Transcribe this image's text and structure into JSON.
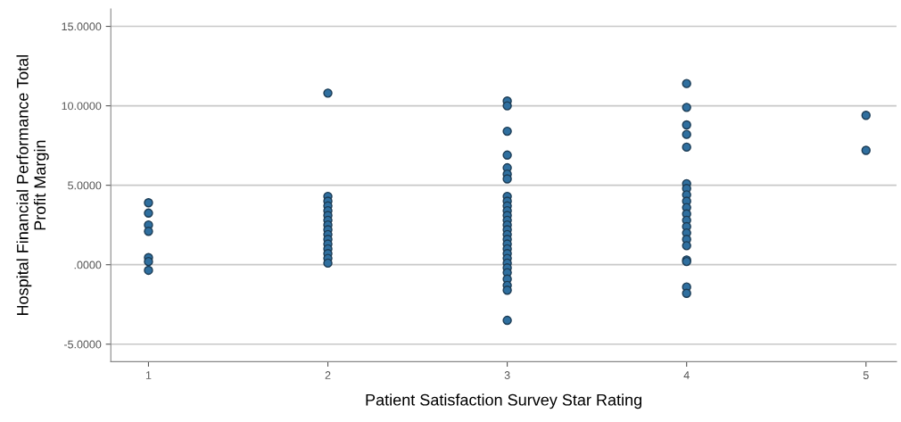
{
  "chart_data": {
    "type": "scatter",
    "xlabel": "Patient Satisfaction Survey Star Rating",
    "ylabel": "Hospital Financial Performance Total\nProfit Margin",
    "series": [
      {
        "color": "#2f6f9f",
        "x": [
          1,
          1,
          1,
          1,
          1,
          1,
          1,
          2,
          2,
          2,
          2,
          2,
          2,
          2,
          2,
          2,
          2,
          2,
          2,
          2,
          2,
          2,
          2,
          3,
          3,
          3,
          3,
          3,
          3,
          3,
          3,
          3,
          3,
          3,
          3,
          3,
          3,
          3,
          3,
          3,
          3,
          3,
          3,
          3,
          3,
          3,
          3,
          3,
          3,
          3,
          3,
          4,
          4,
          4,
          4,
          4,
          4,
          4,
          4,
          4,
          4,
          4,
          4,
          4,
          4,
          4,
          4,
          4,
          4,
          4,
          4,
          5,
          5
        ],
        "values": [
          3.9,
          3.25,
          2.5,
          2.1,
          0.45,
          0.2,
          -0.35,
          10.8,
          4.3,
          4.0,
          3.7,
          3.4,
          3.1,
          2.8,
          2.5,
          2.2,
          1.9,
          1.6,
          1.3,
          1.0,
          0.7,
          0.4,
          0.1,
          10.3,
          10.0,
          8.4,
          6.9,
          6.1,
          5.7,
          5.4,
          4.3,
          4.0,
          3.7,
          3.4,
          3.1,
          2.8,
          2.5,
          2.2,
          1.9,
          1.6,
          1.3,
          1.0,
          0.7,
          0.4,
          0.1,
          -0.2,
          -0.5,
          -0.9,
          -1.3,
          -1.6,
          -3.5,
          11.4,
          9.9,
          8.8,
          8.2,
          7.4,
          5.1,
          4.8,
          4.4,
          4.0,
          3.6,
          3.2,
          2.8,
          2.4,
          2.0,
          1.6,
          1.2,
          0.3,
          0.2,
          -1.4,
          -1.8,
          9.4,
          7.2
        ]
      }
    ],
    "xlim": [
      0.79,
      5.17
    ],
    "xticks": [
      1,
      2,
      3,
      4,
      5
    ],
    "ylim": [
      -6.1,
      16.1
    ],
    "yticks": [
      {
        "value": -5,
        "label": "-5.0000"
      },
      {
        "value": 0,
        "label": ".0000"
      },
      {
        "value": 5,
        "label": "5.0000"
      },
      {
        "value": 10,
        "label": "10.0000"
      },
      {
        "value": 15,
        "label": "15.0000"
      }
    ],
    "grid": "y",
    "marker": "circle"
  }
}
